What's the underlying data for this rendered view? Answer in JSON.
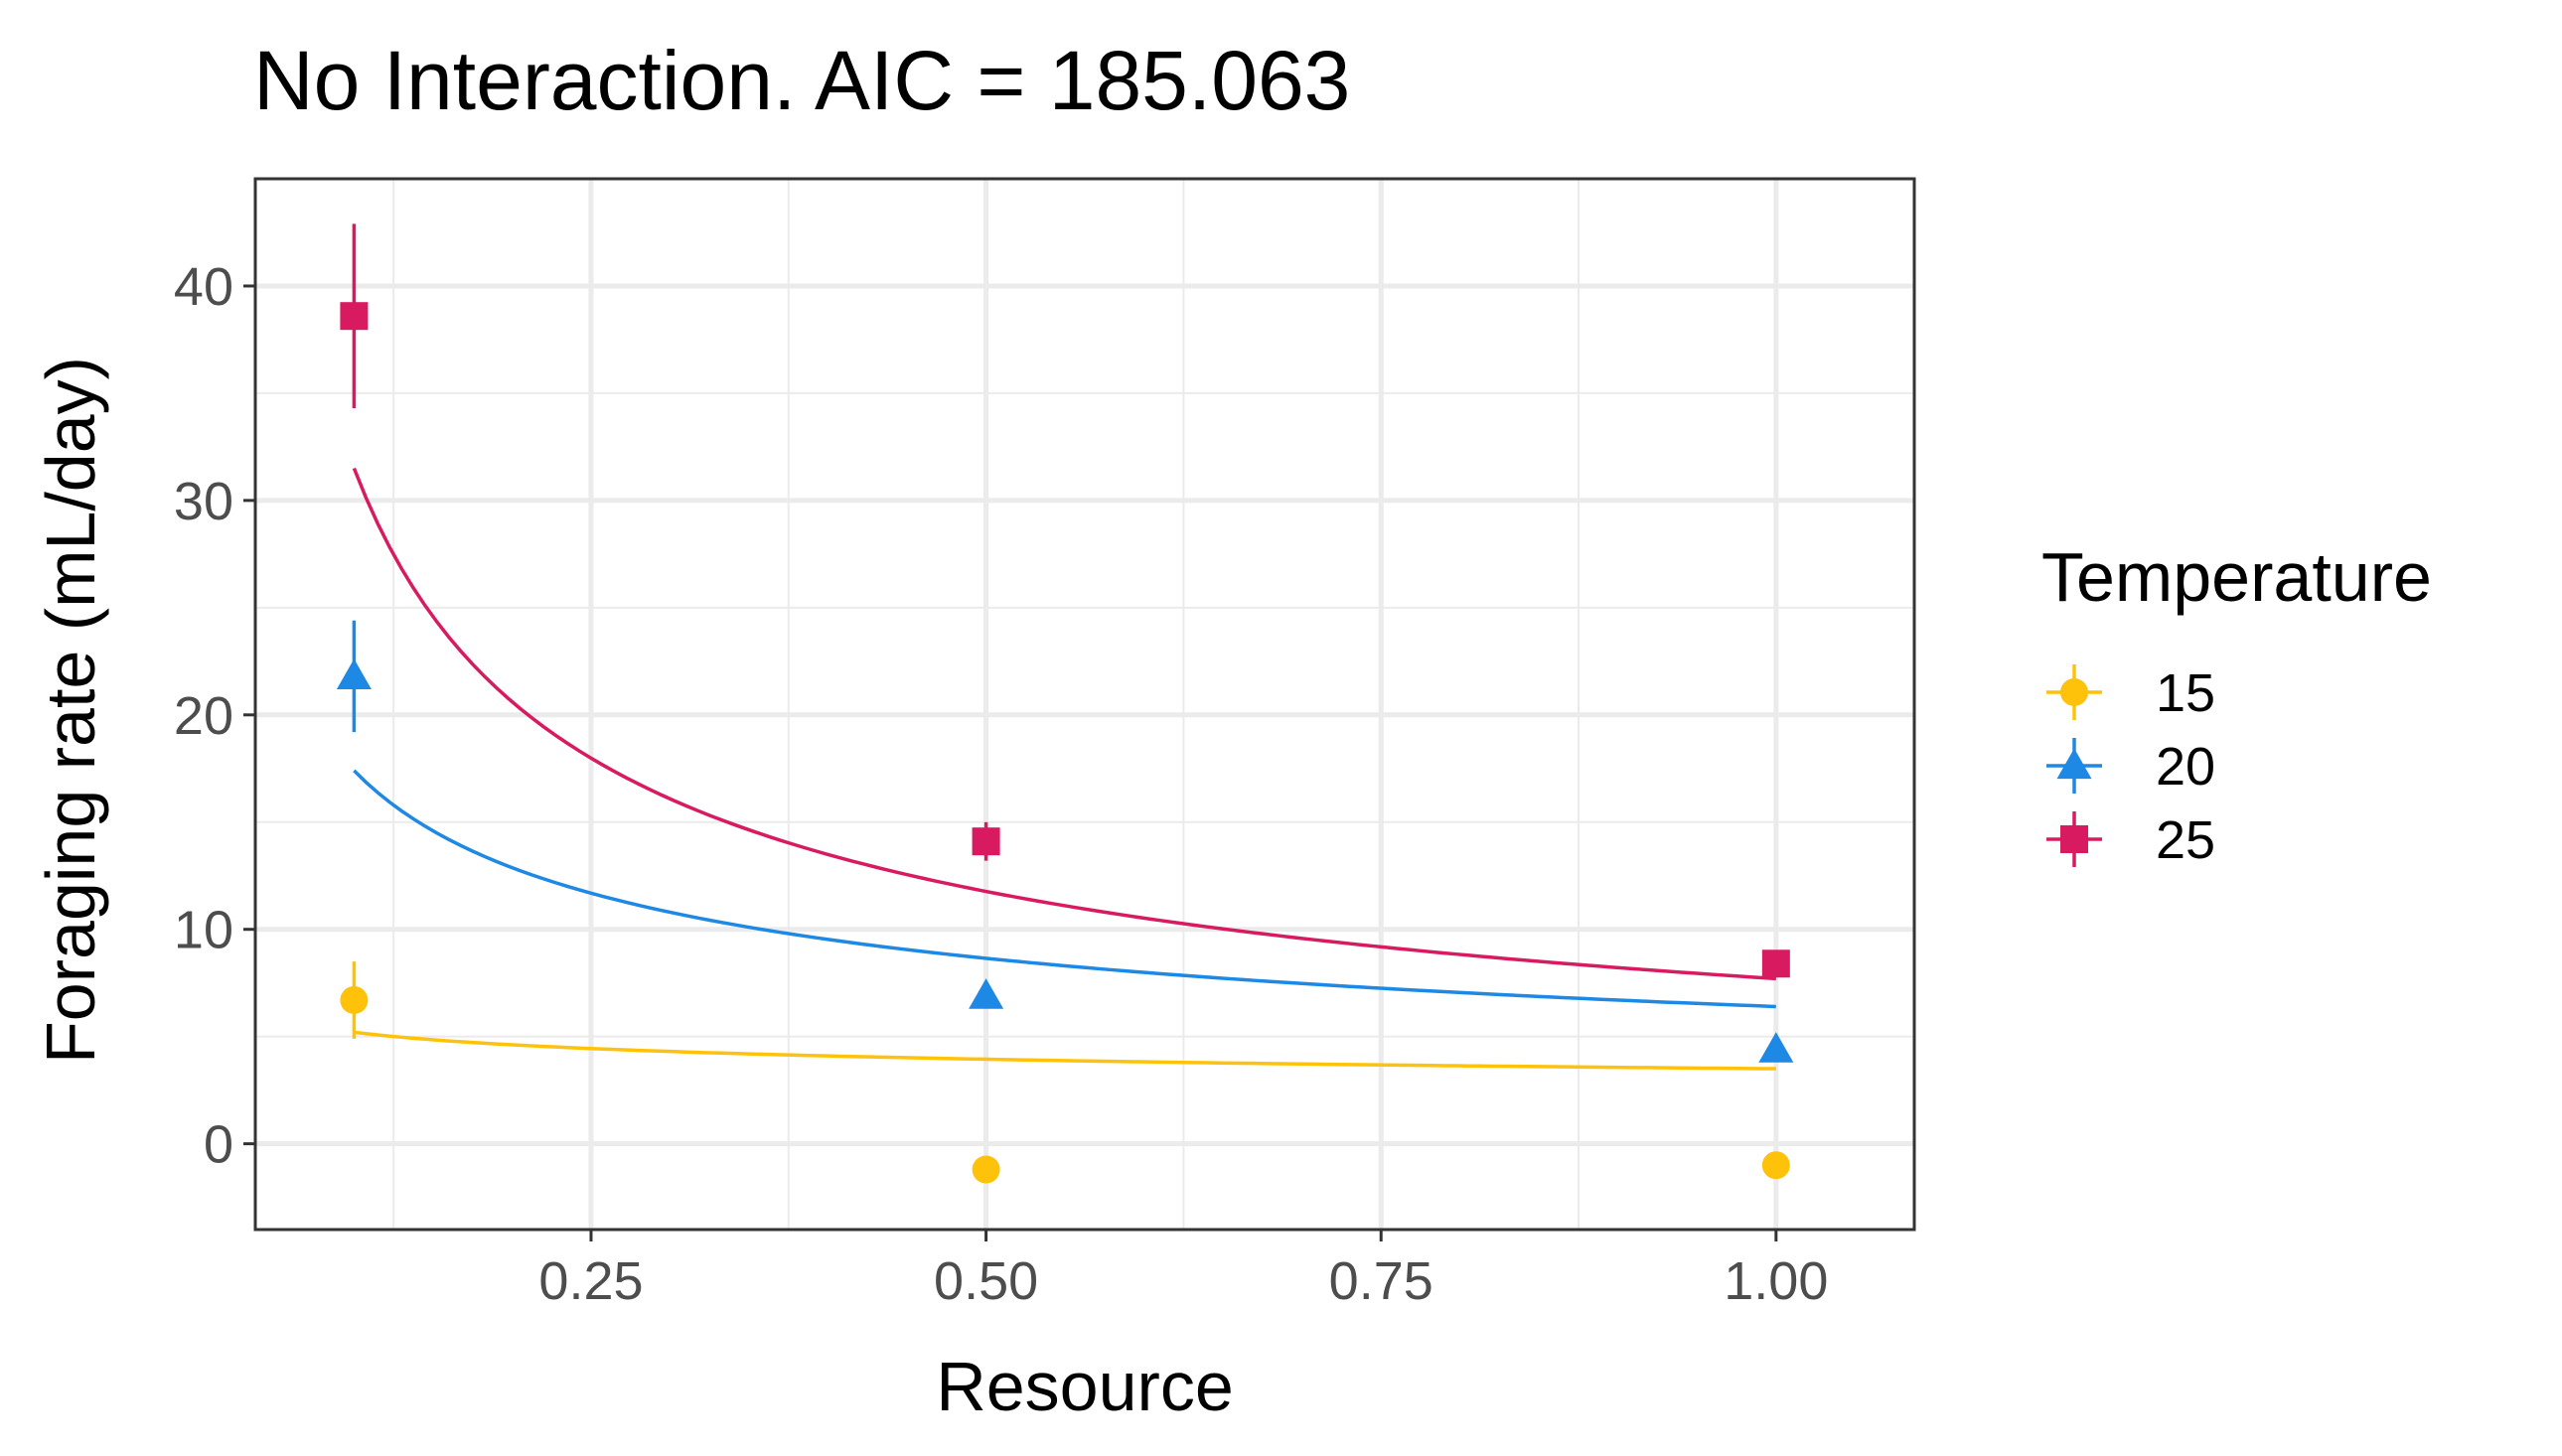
{
  "chart_data": {
    "type": "scatter",
    "title": "No Interaction. AIC = 185.063",
    "xlabel": "Resource",
    "ylabel": "Foraging rate (mL/day)",
    "xlim": [
      0.0375,
      1.0875
    ],
    "ylim": [
      -4,
      45
    ],
    "x_ticks": [
      0.25,
      0.5,
      0.75,
      1.0
    ],
    "x_tick_labels": [
      "0.25",
      "0.50",
      "0.75",
      "1.00"
    ],
    "y_ticks": [
      0,
      10,
      20,
      30,
      40
    ],
    "y_tick_labels": [
      "0",
      "10",
      "20",
      "30",
      "40"
    ],
    "grid": true,
    "legend": {
      "title": "Temperature",
      "position": "right"
    },
    "series": [
      {
        "name": "15",
        "color": "#FFC20A",
        "marker": "circle",
        "points": [
          {
            "x": 0.1,
            "y": 6.7,
            "ymin": 4.9,
            "ymax": 8.5
          },
          {
            "x": 0.5,
            "y": -1.2
          },
          {
            "x": 1.0,
            "y": -1.0
          }
        ],
        "fit": {
          "a": 5.2,
          "b": 3.5
        }
      },
      {
        "name": "20",
        "color": "#1E88E5",
        "marker": "triangle",
        "points": [
          {
            "x": 0.1,
            "y": 21.8,
            "ymin": 19.2,
            "ymax": 24.4
          },
          {
            "x": 0.5,
            "y": 6.9
          },
          {
            "x": 1.0,
            "y": 4.4
          }
        ],
        "fit": {
          "a": 17.4,
          "b": 6.4
        }
      },
      {
        "name": "25",
        "color": "#D81B60",
        "marker": "square",
        "points": [
          {
            "x": 0.1,
            "y": 38.6,
            "ymin": 34.3,
            "ymax": 42.9
          },
          {
            "x": 0.5,
            "y": 14.1,
            "ymin": 13.2,
            "ymax": 15.0
          },
          {
            "x": 1.0,
            "y": 8.4
          }
        ],
        "fit": {
          "a": 31.5,
          "b": 7.7
        }
      }
    ]
  }
}
